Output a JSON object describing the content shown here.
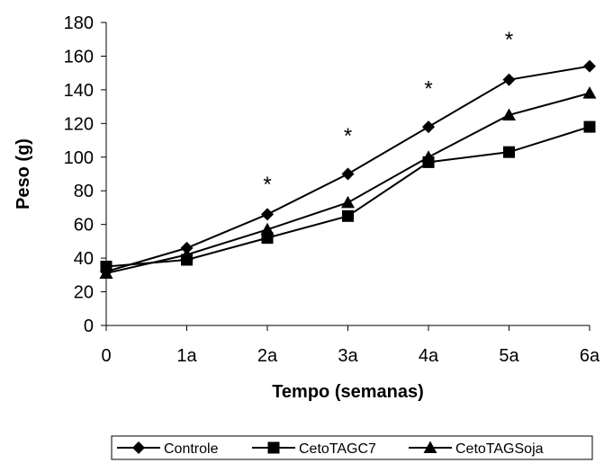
{
  "chart_data": {
    "type": "line",
    "title": "",
    "xlabel": "Tempo (semanas)",
    "ylabel": "Peso (g)",
    "categories": [
      "0",
      "1a",
      "2a",
      "3a",
      "4a",
      "5a",
      "6a"
    ],
    "ylim": [
      0,
      180
    ],
    "yticks": [
      0,
      20,
      40,
      60,
      80,
      100,
      120,
      140,
      160,
      180
    ],
    "grid": false,
    "legend_position": "bottom",
    "series": [
      {
        "name": "Controle",
        "marker": "diamond",
        "values": [
          32,
          46,
          66,
          90,
          118,
          146,
          154
        ]
      },
      {
        "name": "CetoTAGC7",
        "marker": "square",
        "values": [
          35,
          39,
          52,
          65,
          97,
          103,
          118
        ]
      },
      {
        "name": "CetoTAGSoja",
        "marker": "triangle",
        "values": [
          31,
          42,
          57,
          73,
          100,
          125,
          138
        ]
      }
    ],
    "annotations": [
      {
        "category": "2a",
        "y": 87,
        "text": "*"
      },
      {
        "category": "3a",
        "y": 116,
        "text": "*"
      },
      {
        "category": "4a",
        "y": 144,
        "text": "*"
      },
      {
        "category": "5a",
        "y": 173,
        "text": "*"
      }
    ]
  }
}
